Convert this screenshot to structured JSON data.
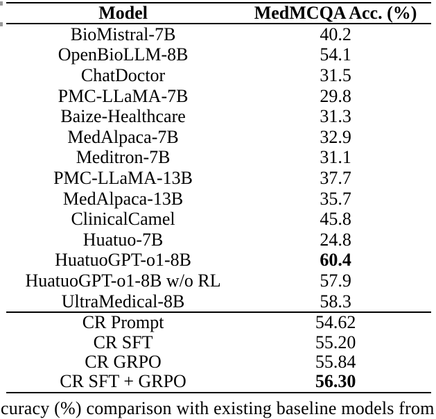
{
  "table": {
    "columns": [
      "Model",
      "MedMCQA Acc. (%)"
    ],
    "baseline_rows": [
      {
        "model": "BioMistral-7B",
        "acc": "40.2"
      },
      {
        "model": "OpenBioLLM-8B",
        "acc": "54.1"
      },
      {
        "model": "ChatDoctor",
        "acc": "31.5"
      },
      {
        "model": "PMC-LLaMA-7B",
        "acc": "29.8"
      },
      {
        "model": "Baize-Healthcare",
        "acc": "31.3"
      },
      {
        "model": "MedAlpaca-7B",
        "acc": "32.9"
      },
      {
        "model": "Meditron-7B",
        "acc": "31.1"
      },
      {
        "model": "PMC-LLaMA-13B",
        "acc": "37.7"
      },
      {
        "model": "MedAlpaca-13B",
        "acc": "35.7"
      },
      {
        "model": "ClinicalCamel",
        "acc": "45.8"
      },
      {
        "model": "Huatuo-7B",
        "acc": "24.8"
      },
      {
        "model": "HuatuoGPT-o1-8B",
        "acc": "60.4"
      },
      {
        "model": "HuatuoGPT-o1-8B w/o RL",
        "acc": "57.9"
      },
      {
        "model": "UltraMedical-8B",
        "acc": "58.3"
      }
    ],
    "cr_rows": [
      {
        "model": "CR Prompt",
        "acc": "54.62"
      },
      {
        "model": "CR SFT",
        "acc": "55.20"
      },
      {
        "model": "CR GRPO",
        "acc": "55.84"
      },
      {
        "model": "CR SFT + GRPO",
        "acc": "56.30"
      }
    ],
    "bold_values": [
      "60.4",
      "56.30"
    ]
  },
  "caption": {
    "visible_text": "curacy (%) comparison with existing baseline models from"
  },
  "colors": {
    "text": "#000000",
    "background": "#ffffff",
    "rule": "#000000"
  }
}
